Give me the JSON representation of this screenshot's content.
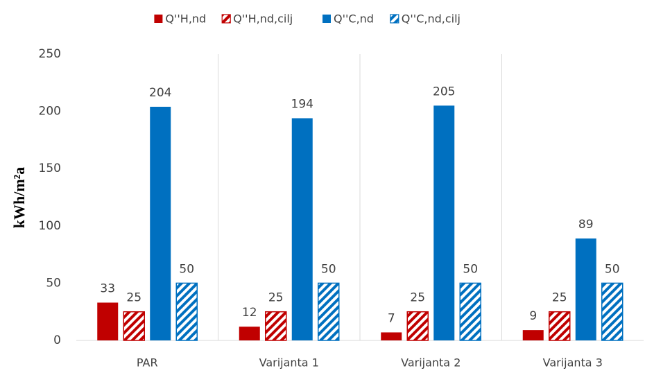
{
  "chart_data": {
    "type": "bar",
    "y_label": "kWh/m²a",
    "categories": [
      "PAR",
      "Varijanta 1",
      "Varijanta 2",
      "Varijanta 3"
    ],
    "series": [
      {
        "name": "Q''H,nd",
        "color": "#c00000",
        "hatch": false,
        "values": [
          33,
          12,
          7,
          9
        ]
      },
      {
        "name": "Q''H,nd,cilj",
        "color": "#c00000",
        "hatch": true,
        "values": [
          25,
          25,
          25,
          25
        ]
      },
      {
        "name": "Q''C,nd",
        "color": "#0070c0",
        "hatch": false,
        "values": [
          204,
          194,
          205,
          89
        ]
      },
      {
        "name": "Q''C,nd,cilj",
        "color": "#0070c0",
        "hatch": true,
        "values": [
          50,
          50,
          50,
          50
        ]
      }
    ],
    "ylim": [
      0,
      250
    ],
    "yticks": [
      0,
      50,
      100,
      150,
      200,
      250
    ],
    "legend": "top"
  }
}
